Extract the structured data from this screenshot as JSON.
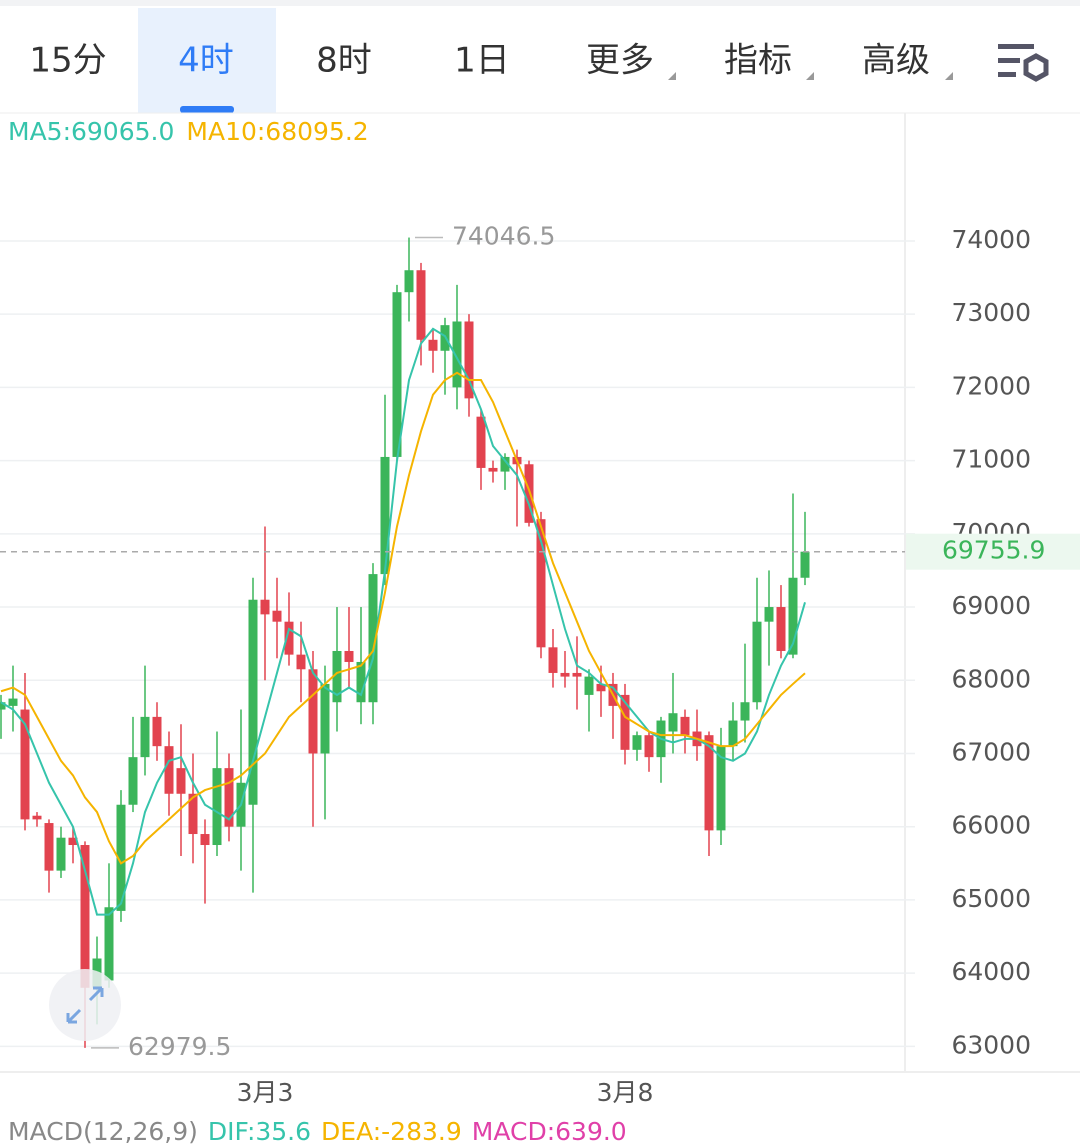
{
  "tabs": [
    "15分",
    "4时",
    "8时",
    "1日",
    "更多",
    "指标",
    "高级"
  ],
  "active_tab": 1,
  "chart_data": {
    "type": "candlestick",
    "categories": [
      null,
      null,
      null,
      null,
      null,
      null,
      null,
      null,
      null,
      null,
      null,
      null,
      null,
      null,
      null,
      null,
      null,
      null,
      null,
      null,
      null,
      null,
      "3月3",
      null,
      null,
      null,
      null,
      null,
      null,
      null,
      null,
      null,
      null,
      null,
      null,
      null,
      null,
      null,
      null,
      null,
      null,
      null,
      null,
      null,
      null,
      null,
      null,
      null,
      null,
      null,
      null,
      null,
      "3月8",
      null,
      null,
      null,
      null,
      null,
      null,
      null,
      null,
      null,
      null,
      null,
      null,
      null,
      null,
      null
    ],
    "open": [
      67600,
      67650,
      67600,
      66150,
      66050,
      65400,
      65850,
      65750,
      63800,
      63900,
      64850,
      66300,
      66950,
      67500,
      67100,
      66800,
      66450,
      65900,
      65750,
      66800,
      66000,
      66300,
      69100,
      68950,
      68800,
      68350,
      68150,
      67000,
      67700,
      68400,
      67700,
      67700,
      69450,
      71050,
      73300,
      73600,
      72650,
      72500,
      72000,
      72900,
      71600,
      70900,
      70850,
      71050,
      70950,
      70200,
      68450,
      68100,
      68100,
      67800,
      67950,
      67950,
      67800,
      67050,
      67250,
      66950,
      67300,
      67500,
      67300,
      67250,
      65950,
      67100,
      67450,
      67700,
      68800,
      69000,
      68350,
      69400
    ],
    "high": [
      67800,
      68200,
      68100,
      66200,
      66100,
      66000,
      66000,
      65800,
      64500,
      65500,
      66500,
      67500,
      68200,
      67700,
      67300,
      67400,
      67000,
      66100,
      67300,
      67000,
      67600,
      69400,
      70100,
      69400,
      69200,
      68800,
      68400,
      68200,
      69000,
      69000,
      69000,
      69600,
      71900,
      73400,
      74046.5,
      73700,
      72800,
      72950,
      73400,
      73000,
      71700,
      71000,
      71100,
      71150,
      71000,
      70300,
      68700,
      68400,
      68600,
      68150,
      68200,
      68100,
      67950,
      67300,
      67300,
      67500,
      68100,
      67600,
      67600,
      67300,
      67350,
      67700,
      68500,
      69400,
      69500,
      69300,
      70550,
      70300
    ],
    "low": [
      67200,
      67300,
      65950,
      66000,
      65100,
      65300,
      65500,
      62979.5,
      63300,
      63800,
      64700,
      66200,
      66700,
      66900,
      66150,
      65600,
      65500,
      64950,
      65600,
      65800,
      65400,
      65100,
      68000,
      68300,
      68200,
      67700,
      66000,
      66100,
      67300,
      67900,
      67400,
      67400,
      69300,
      71000,
      72900,
      72300,
      72200,
      71900,
      71700,
      71600,
      70600,
      70700,
      70600,
      70100,
      70100,
      68300,
      67900,
      67900,
      67600,
      67300,
      67500,
      67200,
      66850,
      66900,
      66750,
      66600,
      67000,
      67000,
      66900,
      65600,
      65750,
      66900,
      67150,
      67600,
      68200,
      68300,
      68300,
      69300
    ],
    "close": [
      67700,
      67750,
      66100,
      66100,
      65400,
      65850,
      65750,
      63800,
      64200,
      64900,
      66300,
      66950,
      67500,
      67100,
      66450,
      66450,
      65900,
      65750,
      66800,
      66000,
      66600,
      69100,
      68900,
      68800,
      68350,
      68150,
      67000,
      67950,
      68400,
      68250,
      68250,
      69450,
      71050,
      73300,
      73600,
      72650,
      72500,
      72850,
      72900,
      71850,
      70900,
      70850,
      71050,
      70950,
      70150,
      68450,
      68100,
      68050,
      68050,
      68050,
      67850,
      67650,
      67050,
      67250,
      66950,
      67450,
      67550,
      67250,
      67100,
      65950,
      67100,
      67450,
      67700,
      68800,
      69000,
      68400,
      69400,
      69755.9
    ],
    "up_color": "#3bb55a",
    "down_color": "#e2434f",
    "series": [
      {
        "name": "MA5:69065.0",
        "color": "#36c4ab",
        "values": [
          67700,
          67600,
          67400,
          67000,
          66600,
          66300,
          66000,
          65400,
          64800,
          64800,
          64950,
          65500,
          66200,
          66600,
          66900,
          66950,
          66600,
          66300,
          66200,
          66100,
          66300,
          66900,
          67500,
          68100,
          68700,
          68600,
          68100,
          67900,
          67800,
          67900,
          67800,
          68300,
          69500,
          71000,
          72100,
          72600,
          72800,
          72700,
          72400,
          72100,
          71700,
          71200,
          71000,
          70800,
          70400,
          69900,
          69300,
          68700,
          68200,
          68100,
          67950,
          67900,
          67700,
          67500,
          67300,
          67200,
          67150,
          67200,
          67200,
          67100,
          66950,
          66900,
          67000,
          67300,
          67800,
          68200,
          68500,
          69065.0
        ]
      },
      {
        "name": "MA10:68095.2",
        "color": "#f5b400",
        "values": [
          67850,
          67900,
          67800,
          67500,
          67200,
          66900,
          66700,
          66400,
          66200,
          65800,
          65500,
          65600,
          65800,
          65950,
          66100,
          66250,
          66400,
          66500,
          66550,
          66600,
          66700,
          66850,
          67000,
          67250,
          67500,
          67650,
          67800,
          67950,
          68100,
          68150,
          68200,
          68400,
          69200,
          70100,
          70800,
          71400,
          71900,
          72100,
          72200,
          72100,
          72100,
          71800,
          71400,
          71000,
          70600,
          70100,
          69600,
          69200,
          68800,
          68400,
          68100,
          67800,
          67500,
          67400,
          67300,
          67250,
          67250,
          67250,
          67200,
          67150,
          67100,
          67100,
          67200,
          67400,
          67600,
          67800,
          67950,
          68095.2
        ]
      }
    ],
    "ylim": [
      62650,
      75720
    ],
    "yticks": [
      63000,
      64000,
      65000,
      66000,
      67000,
      68000,
      69000,
      70000,
      71000,
      72000,
      73000,
      74000
    ],
    "grid": true,
    "indicator": {
      "title": "MACD(12,26,9)",
      "items": [
        "DIF:35.6",
        "DEA:-283.9",
        "MACD:639.0"
      ],
      "colors": [
        "#36c4ab",
        "#f5b400",
        "#e040a8"
      ]
    }
  }
}
